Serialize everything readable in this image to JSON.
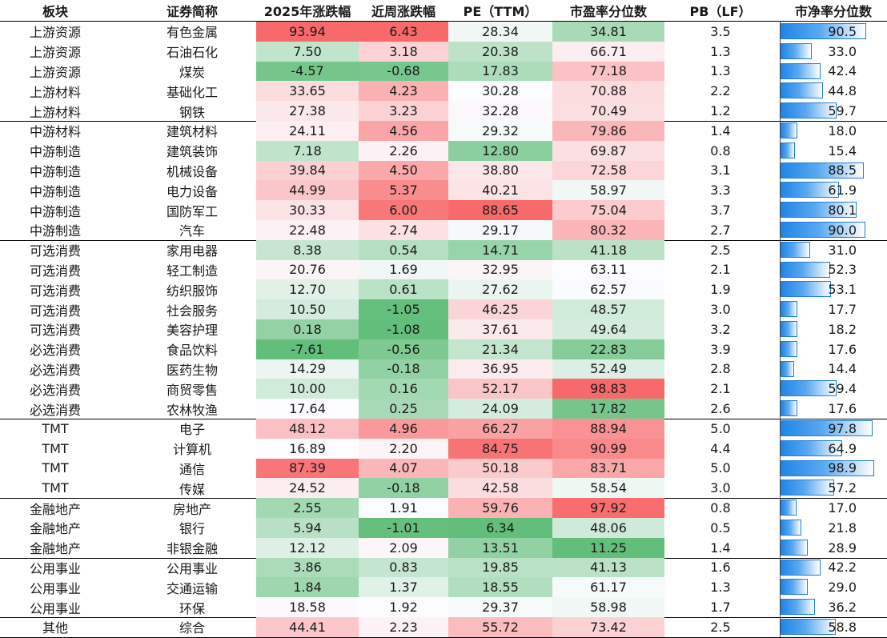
{
  "headers": [
    "板块",
    "证券简称",
    "2025年涨跌幅",
    "近周涨跌幅",
    "PE（TTM）",
    "市盈率分位数",
    "PB（LF）",
    "市净率分位数"
  ],
  "rows": [
    [
      "上游资源",
      "有色金属",
      "93.94",
      "6.43",
      "28.34",
      "34.81",
      "3.5",
      "90.5"
    ],
    [
      "上游资源",
      "石油石化",
      "7.50",
      "3.18",
      "20.38",
      "66.71",
      "1.3",
      "33.0"
    ],
    [
      "上游资源",
      "煤炭",
      "-4.57",
      "-0.68",
      "17.83",
      "77.18",
      "1.3",
      "42.4"
    ],
    [
      "上游材料",
      "基础化工",
      "33.65",
      "4.23",
      "30.28",
      "70.88",
      "2.2",
      "44.8"
    ],
    [
      "上游材料",
      "钢铁",
      "27.38",
      "3.23",
      "32.28",
      "70.49",
      "1.2",
      "59.7"
    ],
    [
      "中游材料",
      "建筑材料",
      "24.11",
      "4.56",
      "29.32",
      "79.86",
      "1.4",
      "18.0"
    ],
    [
      "中游制造",
      "建筑装饰",
      "7.18",
      "2.26",
      "12.80",
      "69.87",
      "0.8",
      "15.4"
    ],
    [
      "中游制造",
      "机械设备",
      "39.84",
      "4.50",
      "38.80",
      "72.58",
      "3.1",
      "88.5"
    ],
    [
      "中游制造",
      "电力设备",
      "44.99",
      "5.37",
      "40.21",
      "58.97",
      "3.3",
      "61.9"
    ],
    [
      "中游制造",
      "国防军工",
      "30.33",
      "6.00",
      "88.65",
      "75.04",
      "3.7",
      "80.1"
    ],
    [
      "中游制造",
      "汽车",
      "22.48",
      "2.74",
      "29.17",
      "80.32",
      "2.7",
      "90.0"
    ],
    [
      "可选消费",
      "家用电器",
      "8.38",
      "0.54",
      "14.71",
      "41.18",
      "2.5",
      "31.0"
    ],
    [
      "可选消费",
      "轻工制造",
      "20.76",
      "1.69",
      "32.95",
      "63.11",
      "2.1",
      "52.3"
    ],
    [
      "可选消费",
      "纺织服饰",
      "12.70",
      "0.61",
      "27.62",
      "62.57",
      "1.9",
      "53.1"
    ],
    [
      "可选消费",
      "社会服务",
      "10.50",
      "-1.05",
      "46.25",
      "48.57",
      "3.0",
      "17.7"
    ],
    [
      "可选消费",
      "美容护理",
      "0.18",
      "-1.08",
      "37.61",
      "49.64",
      "3.2",
      "18.2"
    ],
    [
      "必选消费",
      "食品饮料",
      "-7.61",
      "-0.56",
      "21.34",
      "22.83",
      "3.9",
      "17.6"
    ],
    [
      "必选消费",
      "医药生物",
      "14.29",
      "-0.18",
      "36.95",
      "52.49",
      "2.8",
      "14.4"
    ],
    [
      "必选消费",
      "商贸零售",
      "10.00",
      "0.16",
      "52.17",
      "98.83",
      "2.1",
      "59.4"
    ],
    [
      "必选消费",
      "农林牧渔",
      "17.64",
      "0.25",
      "24.09",
      "17.82",
      "2.6",
      "17.6"
    ],
    [
      "TMT",
      "电子",
      "48.12",
      "4.96",
      "66.27",
      "88.94",
      "5.0",
      "97.8"
    ],
    [
      "TMT",
      "计算机",
      "16.89",
      "2.20",
      "84.75",
      "90.99",
      "4.4",
      "64.9"
    ],
    [
      "TMT",
      "通信",
      "87.39",
      "4.07",
      "50.18",
      "83.71",
      "5.0",
      "98.9"
    ],
    [
      "TMT",
      "传媒",
      "24.52",
      "-0.18",
      "42.58",
      "58.54",
      "3.0",
      "57.2"
    ],
    [
      "金融地产",
      "房地产",
      "2.55",
      "1.91",
      "59.76",
      "97.92",
      "0.8",
      "17.0"
    ],
    [
      "金融地产",
      "银行",
      "5.94",
      "-1.01",
      "6.34",
      "48.06",
      "0.5",
      "21.8"
    ],
    [
      "金融地产",
      "非银金融",
      "12.12",
      "2.09",
      "13.51",
      "11.25",
      "1.4",
      "28.9"
    ],
    [
      "公用事业",
      "公用事业",
      "3.86",
      "0.83",
      "19.85",
      "41.13",
      "1.6",
      "42.2"
    ],
    [
      "公用事业",
      "交通运输",
      "1.84",
      "1.37",
      "18.55",
      "61.17",
      "1.3",
      "29.0"
    ],
    [
      "公用事业",
      "环保",
      "18.58",
      "1.92",
      "29.37",
      "58.98",
      "1.7",
      "36.2"
    ],
    [
      "其他",
      "综合",
      "44.41",
      "2.23",
      "55.72",
      "73.42",
      "2.5",
      "58.8"
    ]
  ],
  "group_break_after": [
    4,
    10,
    19,
    23,
    26,
    29
  ],
  "chart_data": {
    "type": "table",
    "title": "",
    "heatmap_columns": [
      "2025年涨跌幅",
      "近周涨跌幅",
      "PE（TTM）",
      "市盈率分位数"
    ],
    "heatmap_colors": {
      "low": "#63be7b",
      "mid": "#fcfcff",
      "high": "#f8696b"
    },
    "bar_column": "市净率分位数",
    "bar_range": [
      0,
      100
    ],
    "bar_color": "#1f86e6"
  }
}
